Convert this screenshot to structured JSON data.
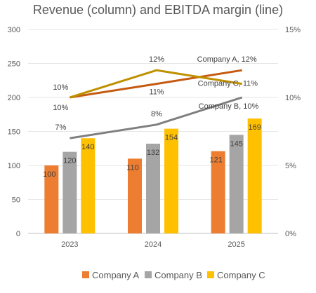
{
  "chart_data": {
    "type": "bar",
    "title": "Revenue (column) and EBITDA margin (line)",
    "categories": [
      "2023",
      "2024",
      "2025"
    ],
    "ylim": [
      0,
      300
    ],
    "y_ticks": [
      "0",
      "50",
      "100",
      "150",
      "200",
      "250",
      "300"
    ],
    "y2lim": [
      0,
      15
    ],
    "y2_ticks": [
      "0%",
      "5%",
      "10%",
      "15%"
    ],
    "grid": true,
    "legend_position": "bottom",
    "series": [
      {
        "name": "Company A",
        "color": "#ED7D31",
        "values": [
          100,
          110,
          121
        ]
      },
      {
        "name": "Company B",
        "color": "#A5A5A5",
        "values": [
          120,
          132,
          145
        ]
      },
      {
        "name": "Company C",
        "color": "#FFC000",
        "values": [
          140,
          154,
          169
        ]
      }
    ],
    "line_series": [
      {
        "name": "Company A",
        "color": "#C55A11",
        "values": [
          10,
          11,
          12
        ],
        "labels": [
          "10%",
          "11%",
          "Company A, 12%"
        ]
      },
      {
        "name": "Company B",
        "color": "#7F7F7F",
        "values": [
          7,
          8,
          10
        ],
        "labels": [
          "7%",
          "8%",
          "Company B, 10%"
        ]
      },
      {
        "name": "Company C",
        "color": "#BF9000",
        "values": [
          10,
          12,
          11
        ],
        "labels": [
          "10%",
          "12%",
          "Company C, 11%"
        ]
      }
    ]
  }
}
